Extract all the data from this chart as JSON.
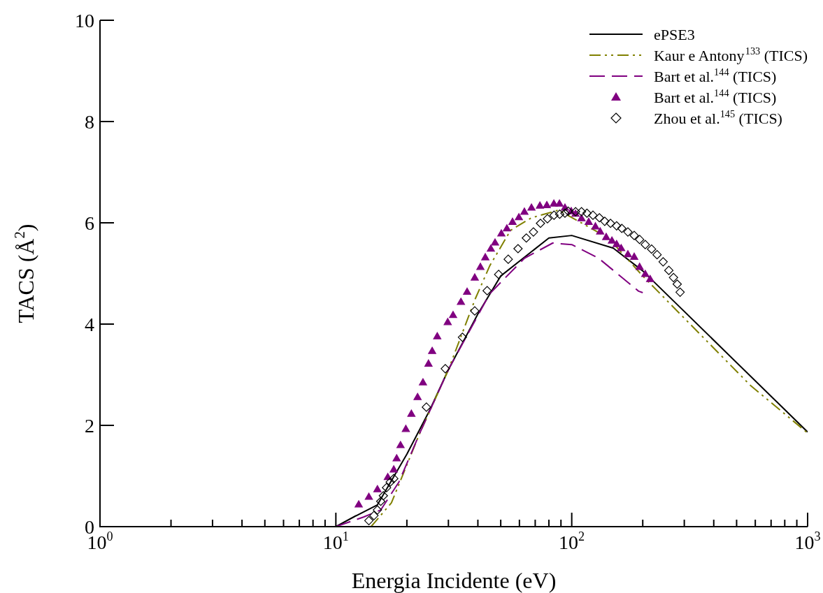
{
  "chart_data": {
    "type": "line",
    "xlabel": "Energia Incidente (eV)",
    "ylabel": "TACS (Å$^{2}$)",
    "log": "x",
    "xlim": [
      1,
      1000
    ],
    "ylim": [
      0,
      10
    ],
    "xticks": [
      {
        "value": 1,
        "label": "10$^{0}$"
      },
      {
        "value": 2,
        "label": null
      },
      {
        "value": 3,
        "label": null
      },
      {
        "value": 4,
        "label": null
      },
      {
        "value": 5,
        "label": null
      },
      {
        "value": 6,
        "label": null
      },
      {
        "value": 7,
        "label": null
      },
      {
        "value": 8,
        "label": null
      },
      {
        "value": 9,
        "label": null
      },
      {
        "value": 10,
        "label": "10$^{1}$"
      },
      {
        "value": 20,
        "label": null
      },
      {
        "value": 30,
        "label": null
      },
      {
        "value": 40,
        "label": null
      },
      {
        "value": 50,
        "label": null
      },
      {
        "value": 60,
        "label": null
      },
      {
        "value": 70,
        "label": null
      },
      {
        "value": 80,
        "label": null
      },
      {
        "value": 90,
        "label": null
      },
      {
        "value": 100,
        "label": "10$^{2}$"
      },
      {
        "value": 200,
        "label": null
      },
      {
        "value": 300,
        "label": null
      },
      {
        "value": 400,
        "label": null
      },
      {
        "value": 500,
        "label": null
      },
      {
        "value": 600,
        "label": null
      },
      {
        "value": 700,
        "label": null
      },
      {
        "value": 800,
        "label": null
      },
      {
        "value": 900,
        "label": null
      },
      {
        "value": 1000,
        "label": "10$^{3}$"
      }
    ],
    "yticks": [
      0,
      2,
      4,
      6,
      8,
      10
    ],
    "grid": false,
    "legend": "top right",
    "series": [
      {
        "name": "ePSE3",
        "type": "line",
        "color": "#000000",
        "marker": "none",
        "line_style": "solid",
        "x": [
          10,
          12,
          15,
          20,
          25,
          30,
          40,
          50,
          80,
          100,
          150,
          200,
          1000
        ],
        "values": [
          0,
          0.2,
          0.43,
          1.43,
          2.3,
          3.1,
          4.2,
          4.95,
          5.7,
          5.75,
          5.5,
          5.05,
          1.87
        ]
      },
      {
        "name": "Kaur e Antony$^{133}$ (TICS)",
        "type": "line",
        "color": "#808000",
        "marker": "none",
        "line_style": "dashdot",
        "x": [
          14.1,
          17.2,
          22.7,
          30,
          39,
          44.9,
          55,
          67.5,
          88,
          143,
          200,
          350,
          572,
          1000
        ],
        "values": [
          0,
          0.47,
          1.85,
          3.1,
          4.5,
          5.15,
          5.85,
          6.1,
          6.25,
          5.7,
          4.95,
          3.8,
          2.79,
          1.85
        ]
      },
      {
        "name": "Bart et al.$^{144}$ (TICS)",
        "type": "line",
        "color": "#800080",
        "marker": "none",
        "line_style": "dashed",
        "x": [
          10,
          13.1,
          15.5,
          18.5,
          22.7,
          30,
          44.9,
          63,
          83,
          100,
          130,
          192,
          200
        ],
        "values": [
          0,
          0.19,
          0.33,
          0.88,
          1.85,
          3.1,
          4.6,
          5.3,
          5.6,
          5.57,
          5.3,
          4.65,
          4.62
        ]
      },
      {
        "name": "Bart et al.$^{144}$ (TICS)",
        "type": "scatter",
        "color": "#800080",
        "marker": "triangle",
        "x": [
          12.5,
          13.8,
          15,
          16.6,
          17.6,
          18.1,
          18.8,
          19.8,
          20.9,
          22.2,
          23.4,
          24.7,
          25.6,
          26.9,
          29.8,
          31.4,
          33.9,
          36,
          38.8,
          41,
          43,
          45.4,
          47.3,
          50.3,
          53.1,
          56.1,
          59.7,
          63,
          67.5,
          73.3,
          78.4,
          84,
          88.7,
          93.6,
          99.5,
          103.8,
          110,
          118,
          126,
          132,
          140,
          148,
          155,
          162,
          173,
          184,
          194,
          205,
          215
        ],
        "values": [
          0.43,
          0.58,
          0.73,
          0.97,
          1.12,
          1.34,
          1.6,
          1.92,
          2.22,
          2.55,
          2.84,
          3.21,
          3.46,
          3.75,
          4.03,
          4.17,
          4.43,
          4.63,
          4.91,
          5.12,
          5.31,
          5.48,
          5.6,
          5.78,
          5.88,
          6.01,
          6.1,
          6.21,
          6.29,
          6.33,
          6.34,
          6.37,
          6.37,
          6.29,
          6.22,
          6.17,
          6.08,
          6.01,
          5.92,
          5.82,
          5.71,
          5.64,
          5.57,
          5.49,
          5.37,
          5.32,
          5.12,
          4.98,
          4.88
        ]
      },
      {
        "name": "Zhou et al.$^{145}$ (TICS)",
        "type": "scatter",
        "color": "#000000",
        "marker": "diamond",
        "x": [
          13.8,
          14.5,
          15,
          15.5,
          15.9,
          16.4,
          17,
          17.6,
          24.2,
          29.1,
          34.4,
          38.8,
          43.8,
          49,
          53.8,
          59.2,
          64.2,
          68.8,
          73.7,
          78.9,
          84.1,
          88.9,
          93.6,
          96.6,
          103.8,
          110,
          116,
          123,
          131,
          138,
          146,
          155,
          163,
          173,
          184,
          194,
          205,
          218,
          230,
          244,
          258,
          270,
          280,
          288
        ],
        "values": [
          0.12,
          0.22,
          0.33,
          0.5,
          0.61,
          0.77,
          0.88,
          0.95,
          2.36,
          3.12,
          3.74,
          4.26,
          4.66,
          4.98,
          5.28,
          5.49,
          5.7,
          5.82,
          5.99,
          6.08,
          6.15,
          6.17,
          6.19,
          6.23,
          6.22,
          6.22,
          6.19,
          6.15,
          6.1,
          6.03,
          5.99,
          5.94,
          5.89,
          5.82,
          5.75,
          5.67,
          5.57,
          5.48,
          5.37,
          5.23,
          5.06,
          4.92,
          4.79,
          4.63
        ]
      }
    ]
  }
}
